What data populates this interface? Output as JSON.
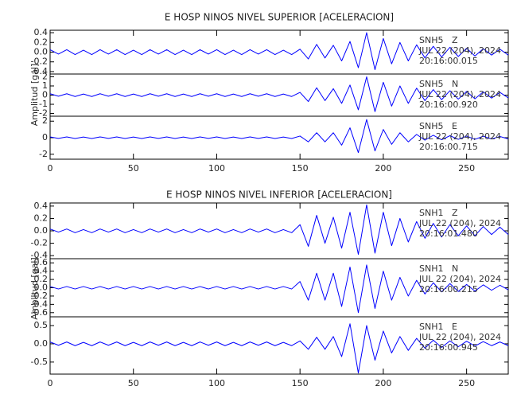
{
  "chart_data": [
    {
      "type": "line",
      "title": "E HOSP NINOS NIVEL SUPERIOR [ACELERACION]",
      "ylabel": "Amplitud [gal]",
      "xlim": [
        0,
        275
      ],
      "xticks": [
        0,
        50,
        100,
        150,
        200,
        250
      ],
      "x": [
        0,
        5,
        10,
        15,
        20,
        25,
        30,
        35,
        40,
        45,
        50,
        55,
        60,
        65,
        70,
        75,
        80,
        85,
        90,
        95,
        100,
        105,
        110,
        115,
        120,
        125,
        130,
        135,
        140,
        145,
        150,
        155,
        160,
        165,
        170,
        175,
        180,
        185,
        190,
        195,
        200,
        205,
        210,
        215,
        220,
        225,
        230,
        235,
        240,
        245,
        250,
        255,
        260,
        265,
        270,
        275
      ],
      "panels": [
        {
          "station": "SNH5   Z",
          "date": "JUL 22 (204), 2024",
          "time": "20:16:00.015",
          "color": "#0000ff",
          "ylim": [
            -0.45,
            0.45
          ],
          "yticks": [
            -0.4,
            -0.2,
            {
              "value": 0,
              "label": "0.0"
            },
            0.2,
            0.4
          ],
          "values": [
            0.05,
            -0.04,
            0.05,
            -0.05,
            0.04,
            -0.05,
            0.05,
            -0.04,
            0.05,
            -0.05,
            0.04,
            -0.05,
            0.05,
            -0.04,
            0.05,
            -0.05,
            0.04,
            -0.05,
            0.05,
            -0.04,
            0.05,
            -0.05,
            0.04,
            -0.05,
            0.05,
            -0.04,
            0.05,
            -0.05,
            0.04,
            -0.05,
            0.06,
            -0.14,
            0.16,
            -0.12,
            0.14,
            -0.18,
            0.22,
            -0.32,
            0.4,
            -0.36,
            0.28,
            -0.24,
            0.2,
            -0.18,
            0.15,
            -0.12,
            0.12,
            -0.1,
            0.1,
            -0.09,
            0.08,
            -0.08,
            0.07,
            -0.06,
            0.06,
            -0.06
          ]
        },
        {
          "station": "SNH5   N",
          "date": "JUL 22 (204), 2024",
          "time": "20:16:00.920",
          "color": "#0000ff",
          "ylim": [
            -2.3,
            2.3
          ],
          "yticks": [
            -2,
            -1,
            0,
            1,
            2
          ],
          "values": [
            0.15,
            -0.12,
            0.15,
            -0.15,
            0.12,
            -0.15,
            0.15,
            -0.12,
            0.15,
            -0.15,
            0.12,
            -0.15,
            0.15,
            -0.12,
            0.15,
            -0.15,
            0.12,
            -0.15,
            0.15,
            -0.12,
            0.15,
            -0.15,
            0.12,
            -0.15,
            0.15,
            -0.12,
            0.15,
            -0.15,
            0.12,
            -0.15,
            0.3,
            -0.7,
            0.8,
            -0.6,
            0.7,
            -0.9,
            1.1,
            -1.6,
            2.0,
            -1.8,
            1.4,
            -1.2,
            1.0,
            -0.9,
            0.76,
            -0.6,
            0.6,
            -0.5,
            0.48,
            -0.44,
            0.4,
            -0.4,
            0.36,
            -0.32,
            0.3,
            -0.3
          ]
        },
        {
          "station": "SNH5   E",
          "date": "JUL 22 (204), 2024",
          "time": "20:16:00.715",
          "color": "#0000ff",
          "ylim": [
            -2.6,
            2.6
          ],
          "yticks": [
            -2,
            0,
            2
          ],
          "values": [
            0.1,
            -0.08,
            0.1,
            -0.1,
            0.08,
            -0.1,
            0.1,
            -0.08,
            0.1,
            -0.1,
            0.08,
            -0.1,
            0.1,
            -0.08,
            0.1,
            -0.1,
            0.08,
            -0.1,
            0.1,
            -0.08,
            0.1,
            -0.1,
            0.08,
            -0.1,
            0.1,
            -0.08,
            0.1,
            -0.1,
            0.08,
            -0.1,
            0.2,
            -0.5,
            0.6,
            -0.5,
            0.6,
            -0.9,
            1.2,
            -1.8,
            2.2,
            -1.6,
            1.0,
            -0.8,
            0.6,
            -0.5,
            0.4,
            -0.3,
            0.3,
            -0.25,
            0.24,
            -0.2,
            0.2,
            -0.2,
            0.18,
            -0.16,
            0.15,
            -0.15
          ]
        }
      ]
    },
    {
      "type": "line",
      "title": "E HOSP NINOS NIVEL INFERIOR [ACELERACION]",
      "ylabel": "Amplitud [gal]",
      "xlim": [
        0,
        275
      ],
      "xticks": [
        0,
        50,
        100,
        150,
        200,
        250
      ],
      "x": [
        0,
        5,
        10,
        15,
        20,
        25,
        30,
        35,
        40,
        45,
        50,
        55,
        60,
        65,
        70,
        75,
        80,
        85,
        90,
        95,
        100,
        105,
        110,
        115,
        120,
        125,
        130,
        135,
        140,
        145,
        150,
        155,
        160,
        165,
        170,
        175,
        180,
        185,
        190,
        195,
        200,
        205,
        210,
        215,
        220,
        225,
        230,
        235,
        240,
        245,
        250,
        255,
        260,
        265,
        270,
        275
      ],
      "panels": [
        {
          "station": "SNH1   Z",
          "date": "JUL 22 (204), 2024",
          "time": "20:16:01.480",
          "color": "#0000ff",
          "ylim": [
            -0.45,
            0.45
          ],
          "yticks": [
            -0.4,
            -0.2,
            {
              "value": 0,
              "label": "0.0"
            },
            0.2,
            0.4
          ],
          "values": [
            0.03,
            -0.02,
            0.03,
            -0.03,
            0.02,
            -0.03,
            0.03,
            -0.02,
            0.03,
            -0.03,
            0.02,
            -0.03,
            0.03,
            -0.02,
            0.03,
            -0.03,
            0.02,
            -0.03,
            0.03,
            -0.02,
            0.03,
            -0.03,
            0.02,
            -0.03,
            0.03,
            -0.02,
            0.03,
            -0.03,
            0.02,
            -0.03,
            0.1,
            -0.25,
            0.25,
            -0.2,
            0.22,
            -0.28,
            0.3,
            -0.38,
            0.42,
            -0.36,
            0.3,
            -0.24,
            0.2,
            -0.18,
            0.15,
            -0.12,
            0.12,
            -0.1,
            0.1,
            -0.08,
            0.08,
            -0.08,
            0.07,
            -0.06,
            0.06,
            -0.06
          ]
        },
        {
          "station": "SNH1   N",
          "date": "JUL 22 (204), 2024",
          "time": "20:16:00.215",
          "color": "#0000ff",
          "ylim": [
            -0.7,
            0.7
          ],
          "yticks": [
            -0.6,
            -0.4,
            -0.2,
            {
              "value": 0,
              "label": "0.0"
            },
            0.2,
            0.4,
            0.6
          ],
          "values": [
            0.03,
            -0.03,
            0.03,
            -0.03,
            0.03,
            -0.03,
            0.03,
            -0.03,
            0.03,
            -0.03,
            0.03,
            -0.03,
            0.03,
            -0.03,
            0.03,
            -0.03,
            0.03,
            -0.03,
            0.03,
            -0.03,
            0.03,
            -0.03,
            0.03,
            -0.03,
            0.03,
            -0.03,
            0.03,
            -0.03,
            0.03,
            -0.03,
            0.15,
            -0.3,
            0.35,
            -0.3,
            0.35,
            -0.45,
            0.5,
            -0.6,
            0.55,
            -0.5,
            0.4,
            -0.3,
            0.25,
            -0.2,
            0.18,
            -0.15,
            0.12,
            -0.1,
            0.1,
            -0.09,
            0.08,
            -0.08,
            0.07,
            -0.06,
            0.06,
            -0.05
          ]
        },
        {
          "station": "SNH1   E",
          "date": "JUL 22 (204), 2024",
          "time": "20:16:00.945",
          "color": "#0000ff",
          "ylim": [
            -0.83,
            0.74
          ],
          "yticks": [
            -0.5,
            {
              "value": 0,
              "label": "0.0"
            },
            0.5
          ],
          "values": [
            0.05,
            -0.04,
            0.05,
            -0.05,
            0.04,
            -0.05,
            0.05,
            -0.04,
            0.05,
            -0.05,
            0.04,
            -0.05,
            0.05,
            -0.04,
            0.05,
            -0.05,
            0.04,
            -0.05,
            0.05,
            -0.04,
            0.05,
            -0.05,
            0.04,
            -0.05,
            0.05,
            -0.04,
            0.05,
            -0.05,
            0.04,
            -0.05,
            0.08,
            -0.15,
            0.18,
            -0.15,
            0.2,
            -0.35,
            0.55,
            -0.8,
            0.5,
            -0.45,
            0.35,
            -0.25,
            0.2,
            -0.18,
            0.15,
            -0.12,
            0.1,
            -0.1,
            0.08,
            -0.08,
            0.07,
            -0.06,
            0.06,
            -0.05,
            0.05,
            -0.05
          ]
        }
      ]
    }
  ]
}
